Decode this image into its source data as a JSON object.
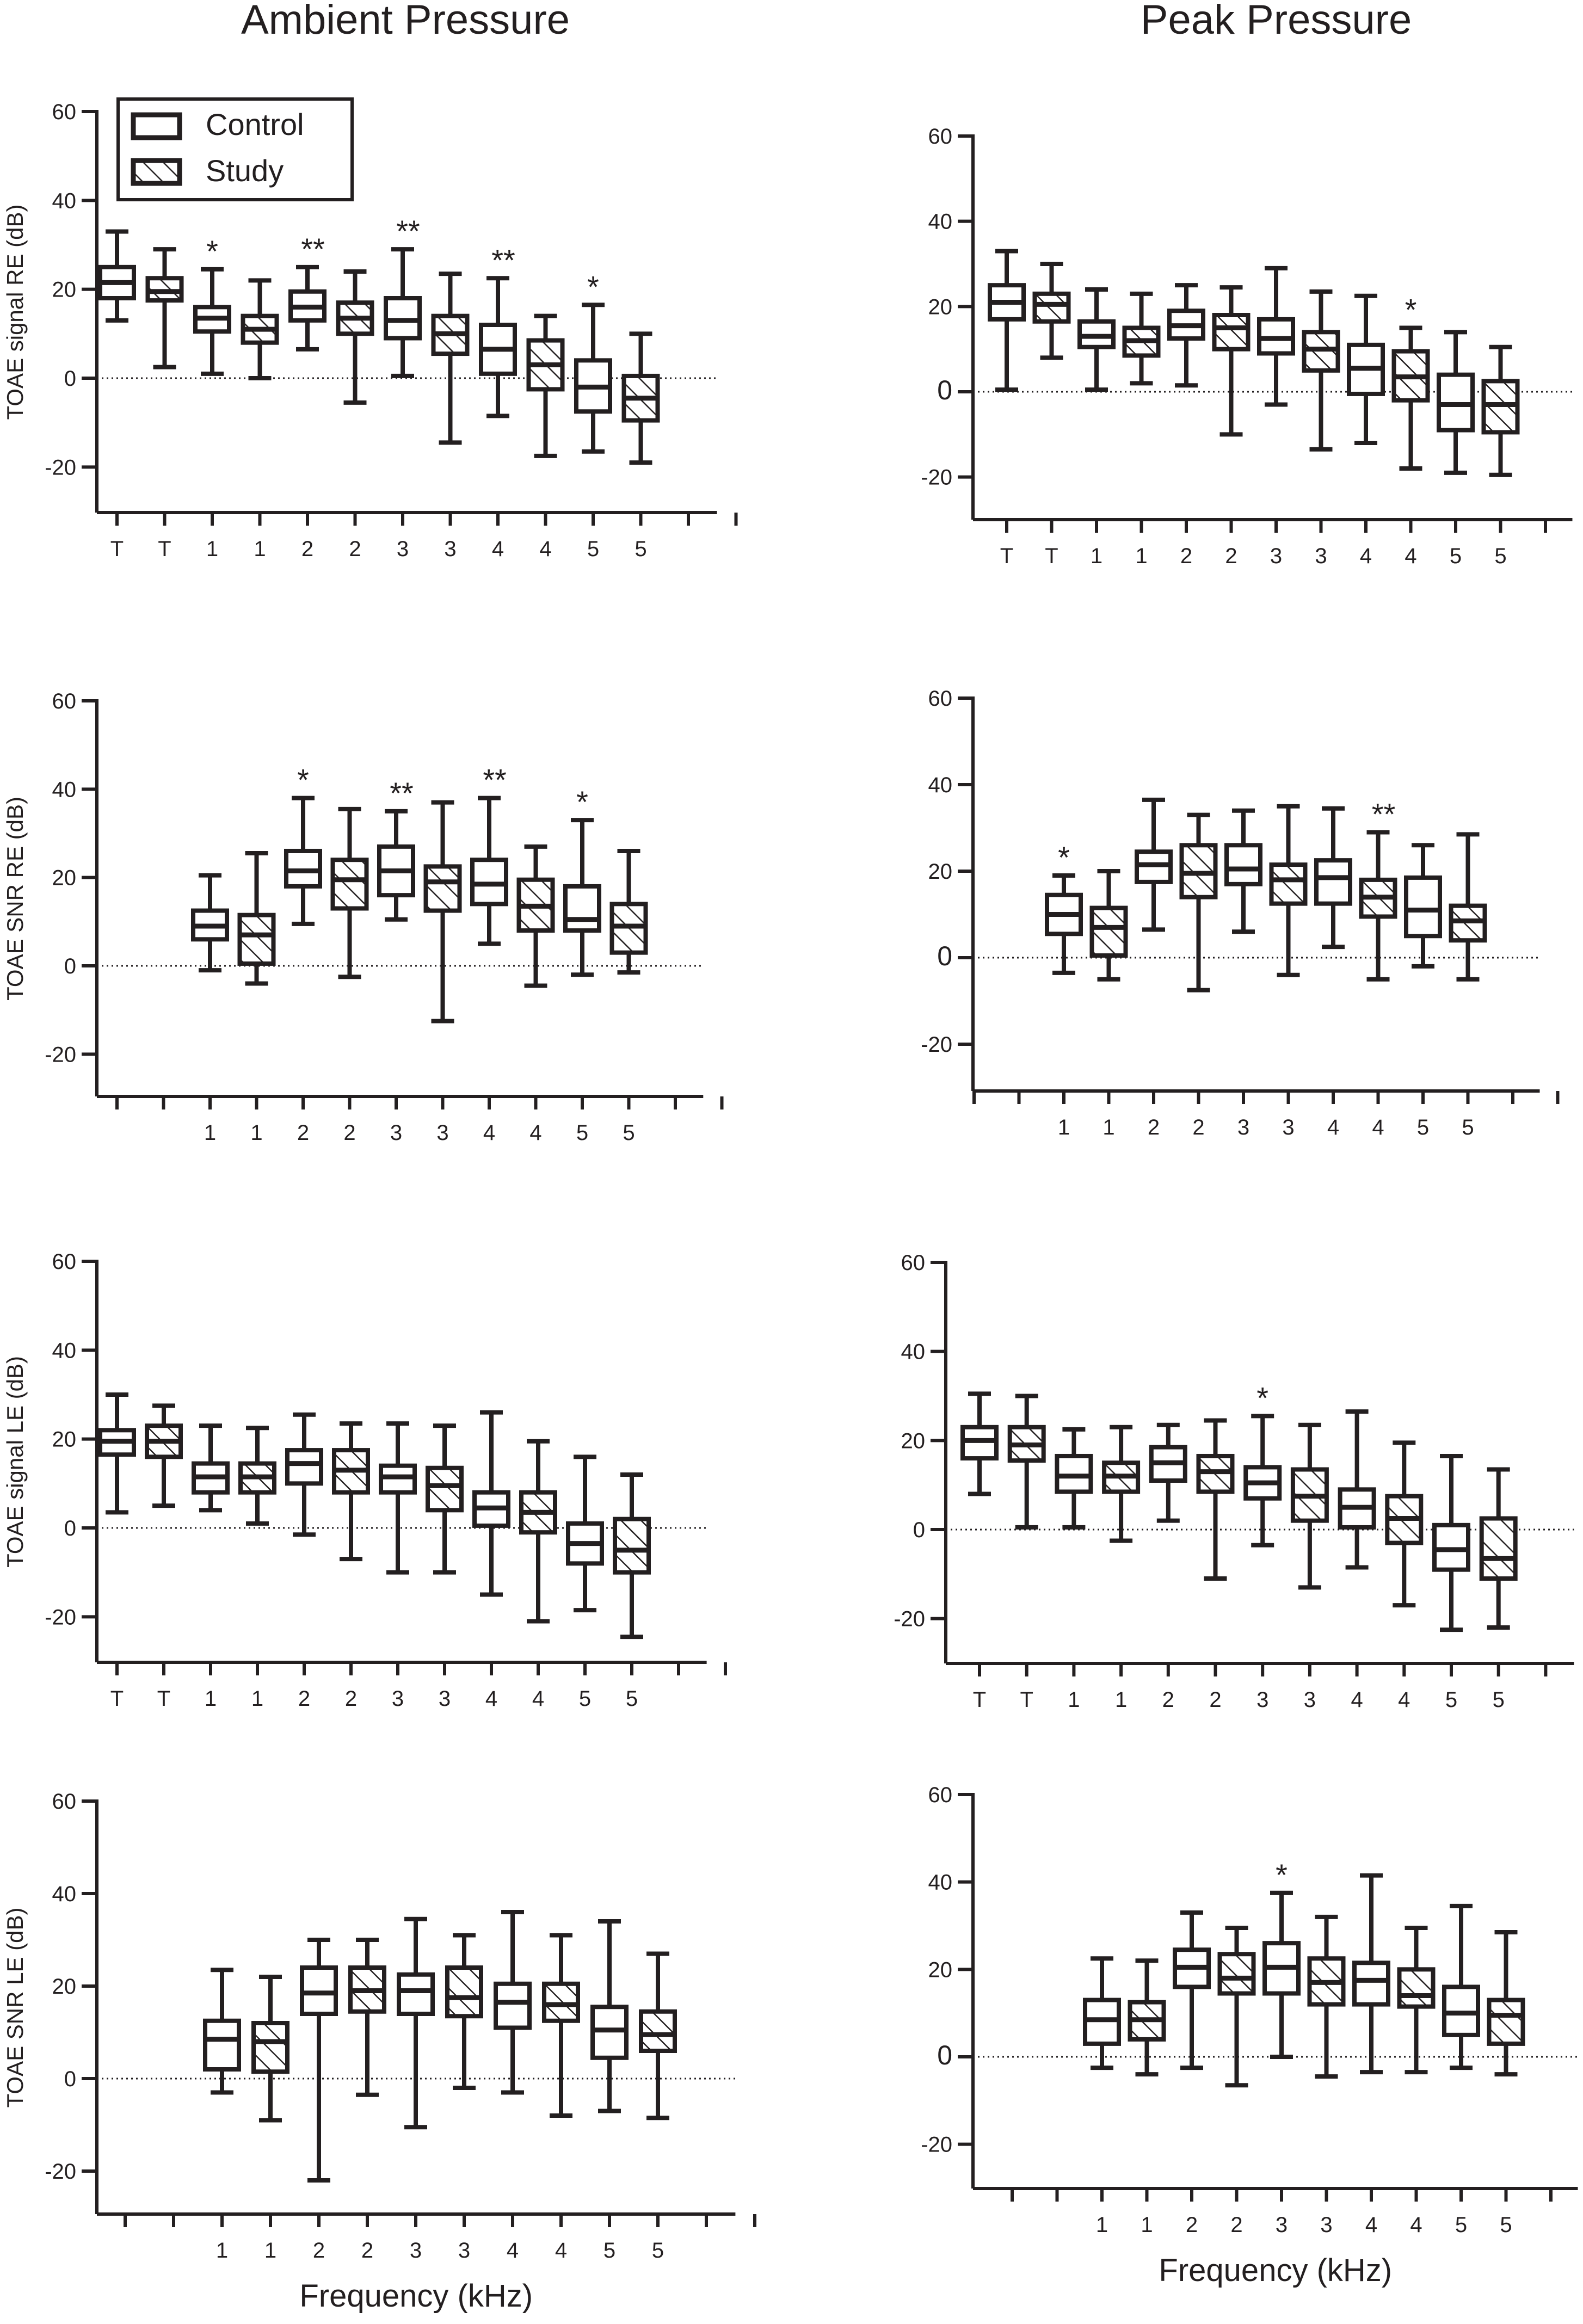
{
  "column_titles": [
    "Ambient Pressure",
    "Peak Pressure"
  ],
  "legend": {
    "control": "Control",
    "study": "Study"
  },
  "xlabel_bottom": "Frequency (kHz)",
  "colors": {
    "ink": "#231f20",
    "background": "#ffffff",
    "box_fill": "#ffffff"
  },
  "chart_data": [
    {
      "type": "box",
      "panel": "ambient-signal-re",
      "ylabel": "TOAE signal RE (dB)",
      "ylim": [
        -30,
        60
      ],
      "yticks": [
        60,
        40,
        20,
        0,
        -20
      ],
      "zero_line": "dotted",
      "legend": "top-left",
      "categories": [
        "T",
        "T",
        "1",
        "1",
        "2",
        "2",
        "3",
        "3",
        "4",
        "4",
        "5",
        "5"
      ],
      "groups": [
        "control",
        "study",
        "control",
        "study",
        "control",
        "study",
        "control",
        "study",
        "control",
        "study",
        "control",
        "study"
      ],
      "boxes": [
        [
          13,
          18,
          21.5,
          25,
          33
        ],
        [
          2.5,
          17.5,
          19.5,
          22.5,
          29
        ],
        [
          1,
          10.5,
          13.5,
          16,
          24.5
        ],
        [
          0,
          8,
          11,
          14,
          22
        ],
        [
          6.5,
          13,
          16,
          19.5,
          25
        ],
        [
          -5.5,
          10,
          13.5,
          17,
          24
        ],
        [
          0.5,
          9,
          13,
          18,
          29
        ],
        [
          -14.5,
          5.5,
          10,
          14,
          23.5
        ],
        [
          -8.5,
          1,
          6.5,
          12,
          22.5
        ],
        [
          -17.5,
          -2.5,
          3,
          8.5,
          14
        ],
        [
          -16.5,
          -7.5,
          -2,
          4,
          16.5
        ],
        [
          -19,
          -9.5,
          -4.5,
          0.5,
          10
        ]
      ],
      "significance": [
        "",
        "",
        "*",
        "",
        "**",
        "",
        "**",
        "",
        "**",
        "",
        "*",
        ""
      ]
    },
    {
      "type": "box",
      "panel": "peak-signal-re",
      "ylabel": "",
      "ylim": [
        -30,
        60
      ],
      "yticks": [
        60,
        40,
        20,
        0,
        -20
      ],
      "zero_line": "dotted",
      "categories": [
        "T",
        "T",
        "1",
        "1",
        "2",
        "2",
        "3",
        "3",
        "4",
        "4",
        "5",
        "5"
      ],
      "groups": [
        "control",
        "study",
        "control",
        "study",
        "control",
        "study",
        "control",
        "study",
        "control",
        "study",
        "control",
        "study"
      ],
      "boxes": [
        [
          0.5,
          17,
          21,
          25,
          33
        ],
        [
          8,
          16.5,
          20.5,
          23,
          30
        ],
        [
          0.5,
          10.5,
          13,
          16.5,
          24
        ],
        [
          2,
          8.5,
          12,
          15,
          23
        ],
        [
          1.5,
          12.5,
          15.5,
          19,
          25
        ],
        [
          -10,
          10,
          15,
          18,
          24.5
        ],
        [
          -3,
          9,
          12.5,
          17,
          29
        ],
        [
          -13.5,
          5,
          10,
          14,
          23.5
        ],
        [
          -12,
          -0.5,
          5.5,
          11,
          22.5
        ],
        [
          -18,
          -2,
          3.5,
          9.5,
          15
        ],
        [
          -19,
          -9,
          -3,
          4,
          14
        ],
        [
          -19.5,
          -9.5,
          -3,
          2.5,
          10.5
        ]
      ],
      "significance": [
        "",
        "",
        "",
        "",
        "",
        "",
        "",
        "",
        "",
        "*",
        "",
        ""
      ]
    },
    {
      "type": "box",
      "panel": "ambient-snr-re",
      "ylabel": "TOAE SNR RE (dB)",
      "ylim": [
        -30,
        60
      ],
      "yticks": [
        60,
        40,
        20,
        0,
        -20
      ],
      "zero_line": "dotted",
      "categories": [
        "1",
        "1",
        "2",
        "2",
        "3",
        "3",
        "4",
        "4",
        "5",
        "5"
      ],
      "groups": [
        "control",
        "study",
        "control",
        "study",
        "control",
        "study",
        "control",
        "study",
        "control",
        "study"
      ],
      "boxes": [
        [
          -1,
          6,
          9,
          12.5,
          20.5
        ],
        [
          -4,
          0.5,
          7,
          11.5,
          25.5
        ],
        [
          9.5,
          18,
          21.5,
          26,
          38
        ],
        [
          -2.5,
          13,
          19.5,
          24,
          35.5
        ],
        [
          10.5,
          16,
          21.5,
          27,
          35
        ],
        [
          -12.5,
          12.5,
          19,
          22.5,
          37
        ],
        [
          5,
          14,
          18.5,
          24,
          38
        ],
        [
          -4.5,
          8,
          13.5,
          19.5,
          27
        ],
        [
          -2,
          8,
          10.5,
          18,
          33
        ],
        [
          -1.5,
          3,
          9,
          14,
          26
        ]
      ],
      "significance": [
        "",
        "",
        "*",
        "",
        "**",
        "",
        "**",
        "",
        "*",
        ""
      ]
    },
    {
      "type": "box",
      "panel": "peak-snr-re",
      "ylabel": "",
      "ylim": [
        -30,
        60
      ],
      "yticks": [
        60,
        40,
        20,
        0,
        -20
      ],
      "zero_line": "dotted",
      "categories": [
        "1",
        "1",
        "2",
        "2",
        "3",
        "3",
        "4",
        "4",
        "5",
        "5"
      ],
      "groups": [
        "control",
        "study",
        "control",
        "study",
        "control",
        "study",
        "control",
        "study",
        "control",
        "study"
      ],
      "boxes": [
        [
          -3.5,
          5.5,
          10,
          14.5,
          19
        ],
        [
          -5,
          0.5,
          7,
          11.5,
          20
        ],
        [
          6.5,
          17.5,
          21.5,
          24.5,
          36.5
        ],
        [
          -7.5,
          14,
          19.5,
          26,
          33
        ],
        [
          6,
          17,
          20.5,
          26,
          34
        ],
        [
          -4,
          12.5,
          18,
          21.5,
          35
        ],
        [
          2.5,
          12.5,
          18.5,
          22.5,
          34.5
        ],
        [
          -5,
          9.5,
          14,
          18,
          29
        ],
        [
          -2,
          5,
          11,
          18.5,
          26
        ],
        [
          -5,
          4,
          8.5,
          12,
          28.5
        ]
      ],
      "significance": [
        "*",
        "",
        "",
        "",
        "",
        "",
        "",
        "**",
        "",
        ""
      ]
    },
    {
      "type": "box",
      "panel": "ambient-signal-le",
      "ylabel": "TOAE signal LE (dB)",
      "ylim": [
        -30,
        60
      ],
      "yticks": [
        60,
        40,
        20,
        0,
        -20
      ],
      "zero_line": "dotted",
      "categories": [
        "T",
        "T",
        "1",
        "1",
        "2",
        "2",
        "3",
        "3",
        "4",
        "4",
        "5",
        "5"
      ],
      "groups": [
        "control",
        "study",
        "control",
        "study",
        "control",
        "study",
        "control",
        "study",
        "control",
        "study",
        "control",
        "study"
      ],
      "boxes": [
        [
          3.5,
          16.5,
          19.5,
          22,
          30
        ],
        [
          5,
          16,
          19.5,
          23,
          27.5
        ],
        [
          4,
          8,
          11.5,
          14.5,
          23
        ],
        [
          1,
          8,
          11.5,
          14.5,
          22.5
        ],
        [
          -1.5,
          10,
          14.5,
          17.5,
          25.5
        ],
        [
          -7,
          8,
          13,
          17.5,
          23.5
        ],
        [
          -10,
          8,
          11.5,
          14,
          23.5
        ],
        [
          -10,
          4,
          9.5,
          13.5,
          23
        ],
        [
          -15,
          0.5,
          4.5,
          8,
          26
        ],
        [
          -21,
          -1,
          3.5,
          8,
          19.5
        ],
        [
          -18.5,
          -8,
          -3.5,
          1,
          16
        ],
        [
          -24.5,
          -10,
          -5,
          2,
          12
        ]
      ],
      "significance": [
        "",
        "",
        "",
        "",
        "",
        "",
        "",
        "",
        "",
        "",
        "",
        ""
      ]
    },
    {
      "type": "box",
      "panel": "peak-signal-le",
      "ylabel": "",
      "ylim": [
        -30,
        60
      ],
      "yticks": [
        60,
        40,
        20,
        0,
        -20
      ],
      "zero_line": "dotted",
      "categories": [
        "T",
        "T",
        "1",
        "1",
        "2",
        "2",
        "3",
        "3",
        "4",
        "4",
        "5",
        "5"
      ],
      "groups": [
        "control",
        "study",
        "control",
        "study",
        "control",
        "study",
        "control",
        "study",
        "control",
        "study",
        "control",
        "study"
      ],
      "boxes": [
        [
          8,
          16,
          20,
          23,
          30.5
        ],
        [
          0.5,
          15.5,
          19,
          23,
          30
        ],
        [
          0.5,
          8.5,
          12,
          16.5,
          22.5
        ],
        [
          -2.5,
          8.5,
          12,
          15,
          23
        ],
        [
          2,
          11,
          15,
          18.5,
          23.5
        ],
        [
          -11,
          8.5,
          13,
          16.5,
          24.5
        ],
        [
          -3.5,
          7,
          10.5,
          14,
          25.5
        ],
        [
          -13,
          2,
          7.5,
          13.5,
          23.5
        ],
        [
          -8.5,
          0.5,
          5,
          9,
          26.5
        ],
        [
          -17,
          -3,
          2.5,
          7.5,
          19.5
        ],
        [
          -22.5,
          -9,
          -4.5,
          1,
          16.5
        ],
        [
          -22,
          -11,
          -6.5,
          2.5,
          13.5
        ]
      ],
      "significance": [
        "",
        "",
        "",
        "",
        "",
        "",
        "*",
        "",
        "",
        "",
        "",
        ""
      ]
    },
    {
      "type": "box",
      "panel": "ambient-snr-le",
      "ylabel": "TOAE SNR LE (dB)",
      "ylim": [
        -30,
        60
      ],
      "yticks": [
        60,
        40,
        20,
        0,
        -20
      ],
      "zero_line": "dotted",
      "xlabel": "Frequency (kHz)",
      "categories": [
        "1",
        "1",
        "2",
        "2",
        "3",
        "3",
        "4",
        "4",
        "5",
        "5"
      ],
      "groups": [
        "control",
        "study",
        "control",
        "study",
        "control",
        "study",
        "control",
        "study",
        "control",
        "study"
      ],
      "boxes": [
        [
          -3,
          2,
          8.5,
          12.5,
          23.5
        ],
        [
          -9,
          1.5,
          8,
          12,
          22
        ],
        [
          -22,
          14,
          18.5,
          24,
          30
        ],
        [
          -3.5,
          14.5,
          19,
          24,
          30
        ],
        [
          -10.5,
          14,
          19,
          22.5,
          34.5
        ],
        [
          -2,
          13.5,
          17.5,
          24,
          31
        ],
        [
          -3,
          11,
          16.5,
          20.5,
          36
        ],
        [
          -8,
          12.5,
          16,
          20.5,
          31
        ],
        [
          -7,
          4.5,
          10.5,
          15.5,
          34
        ],
        [
          -8.5,
          6,
          9.5,
          14.5,
          27
        ]
      ],
      "significance": [
        "",
        "",
        "",
        "",
        "",
        "",
        "",
        "",
        "",
        ""
      ]
    },
    {
      "type": "box",
      "panel": "peak-snr-le",
      "ylabel": "",
      "ylim": [
        -30,
        60
      ],
      "yticks": [
        60,
        40,
        20,
        0,
        -20
      ],
      "zero_line": "dotted",
      "xlabel": "Frequency (kHz)",
      "categories": [
        "1",
        "1",
        "2",
        "2",
        "3",
        "3",
        "4",
        "4",
        "5",
        "5"
      ],
      "groups": [
        "control",
        "study",
        "control",
        "study",
        "control",
        "study",
        "control",
        "study",
        "control",
        "study"
      ],
      "boxes": [
        [
          -2.5,
          3,
          8.5,
          13,
          22.5
        ],
        [
          -4,
          4,
          8.5,
          12.5,
          22
        ],
        [
          -2.5,
          16,
          20.5,
          24.5,
          33
        ],
        [
          -6.5,
          14.5,
          18,
          23.5,
          29.5
        ],
        [
          0,
          14.5,
          20.5,
          26,
          37.5
        ],
        [
          -4.5,
          12,
          17,
          22.5,
          32
        ],
        [
          -3.5,
          12,
          17.5,
          21.5,
          41.5
        ],
        [
          -3.5,
          11.5,
          14,
          20,
          29.5
        ],
        [
          -2.5,
          5,
          10,
          16,
          34.5
        ],
        [
          -4,
          3,
          9.5,
          13,
          28.5
        ]
      ],
      "significance": [
        "",
        "",
        "",
        "",
        "*",
        "",
        "",
        "",
        "",
        ""
      ]
    }
  ]
}
